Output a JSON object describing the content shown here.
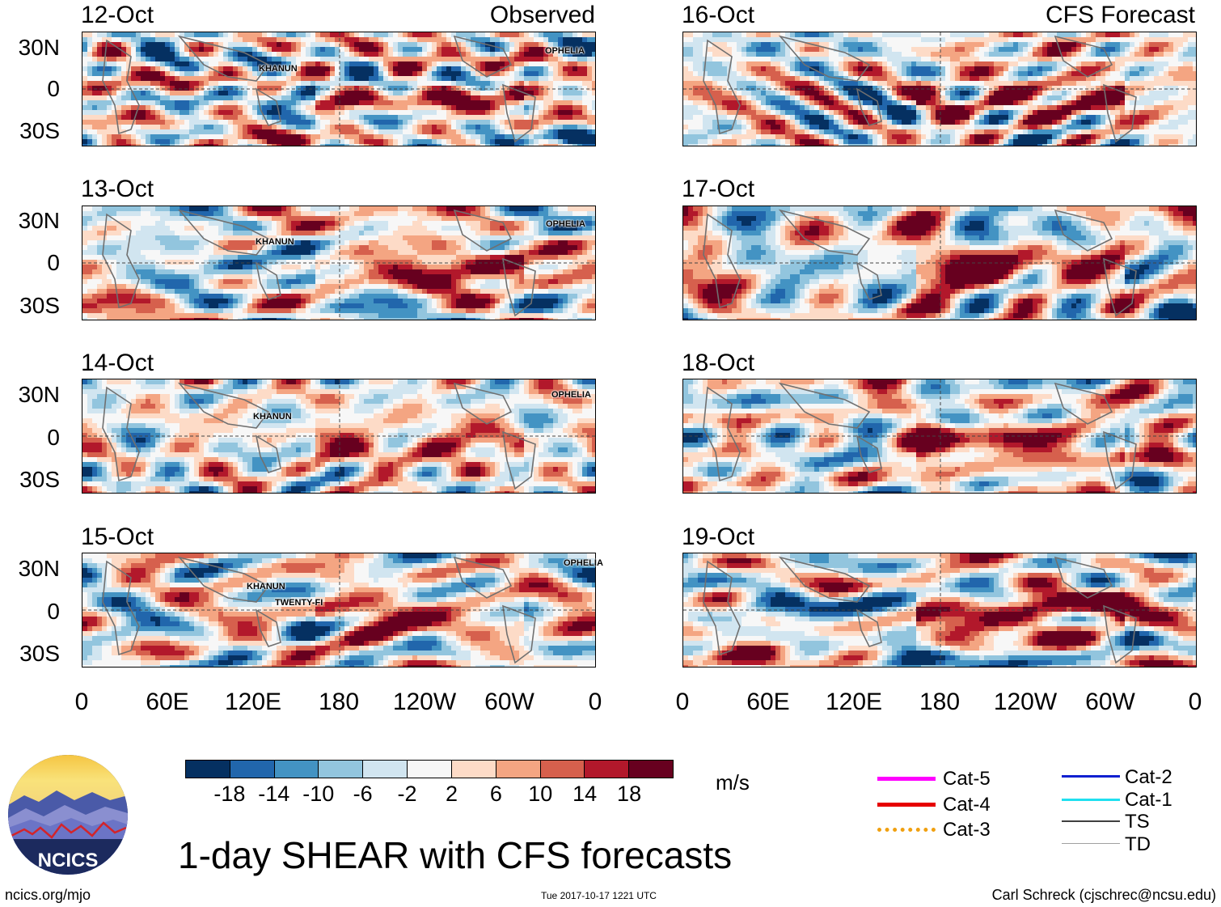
{
  "title": "1-day SHEAR with CFS forecasts",
  "panels_left_tag": "Observed",
  "panels_right_tag": "CFS Forecast",
  "observed_dates": [
    "12-Oct",
    "13-Oct",
    "14-Oct",
    "15-Oct"
  ],
  "forecast_dates": [
    "16-Oct",
    "17-Oct",
    "18-Oct",
    "19-Oct"
  ],
  "lat_labels": [
    "30N",
    "0",
    "30S"
  ],
  "lon_labels": [
    "0",
    "60E",
    "120E",
    "180",
    "120W",
    "60W",
    "0"
  ],
  "storms": {
    "p12": [
      "KHANUN",
      "OPHELIA"
    ],
    "p13": [
      "KHANUN",
      "OPHELIA"
    ],
    "p14": [
      "KHANUN",
      "OPHELIA"
    ],
    "p15": [
      "KHANUN",
      "TWENTY-FI",
      "OPHELIA"
    ]
  },
  "colorbar": {
    "units": "m/s",
    "ticks": [
      "-18",
      "-14",
      "-10",
      "-6",
      "-2",
      "2",
      "6",
      "10",
      "14",
      "18"
    ],
    "colors": [
      "#053061",
      "#2166ac",
      "#4393c3",
      "#92c5de",
      "#d1e5f0",
      "#f7f7f7",
      "#fddbc7",
      "#f4a582",
      "#d6604d",
      "#b2182b",
      "#67001f"
    ]
  },
  "legend": {
    "items": [
      {
        "label": "Cat-5",
        "color": "#ff00ff"
      },
      {
        "label": "Cat-4",
        "color": "#e60000"
      },
      {
        "label": "Cat-3",
        "color": "#f0a010"
      },
      {
        "label": "Cat-2",
        "color": "#1020d0"
      },
      {
        "label": "Cat-1",
        "color": "#20e0f0"
      },
      {
        "label": "TS",
        "color": "#404040"
      },
      {
        "label": "TD",
        "color": "#a0a0a0"
      }
    ]
  },
  "logo_text": "NCICS",
  "footer": {
    "website": "ncics.org/mjo",
    "timestamp": "Tue 2017-10-17 1221 UTC",
    "author": "Carl Schreck (cjschrec@ncsu.edu)"
  }
}
